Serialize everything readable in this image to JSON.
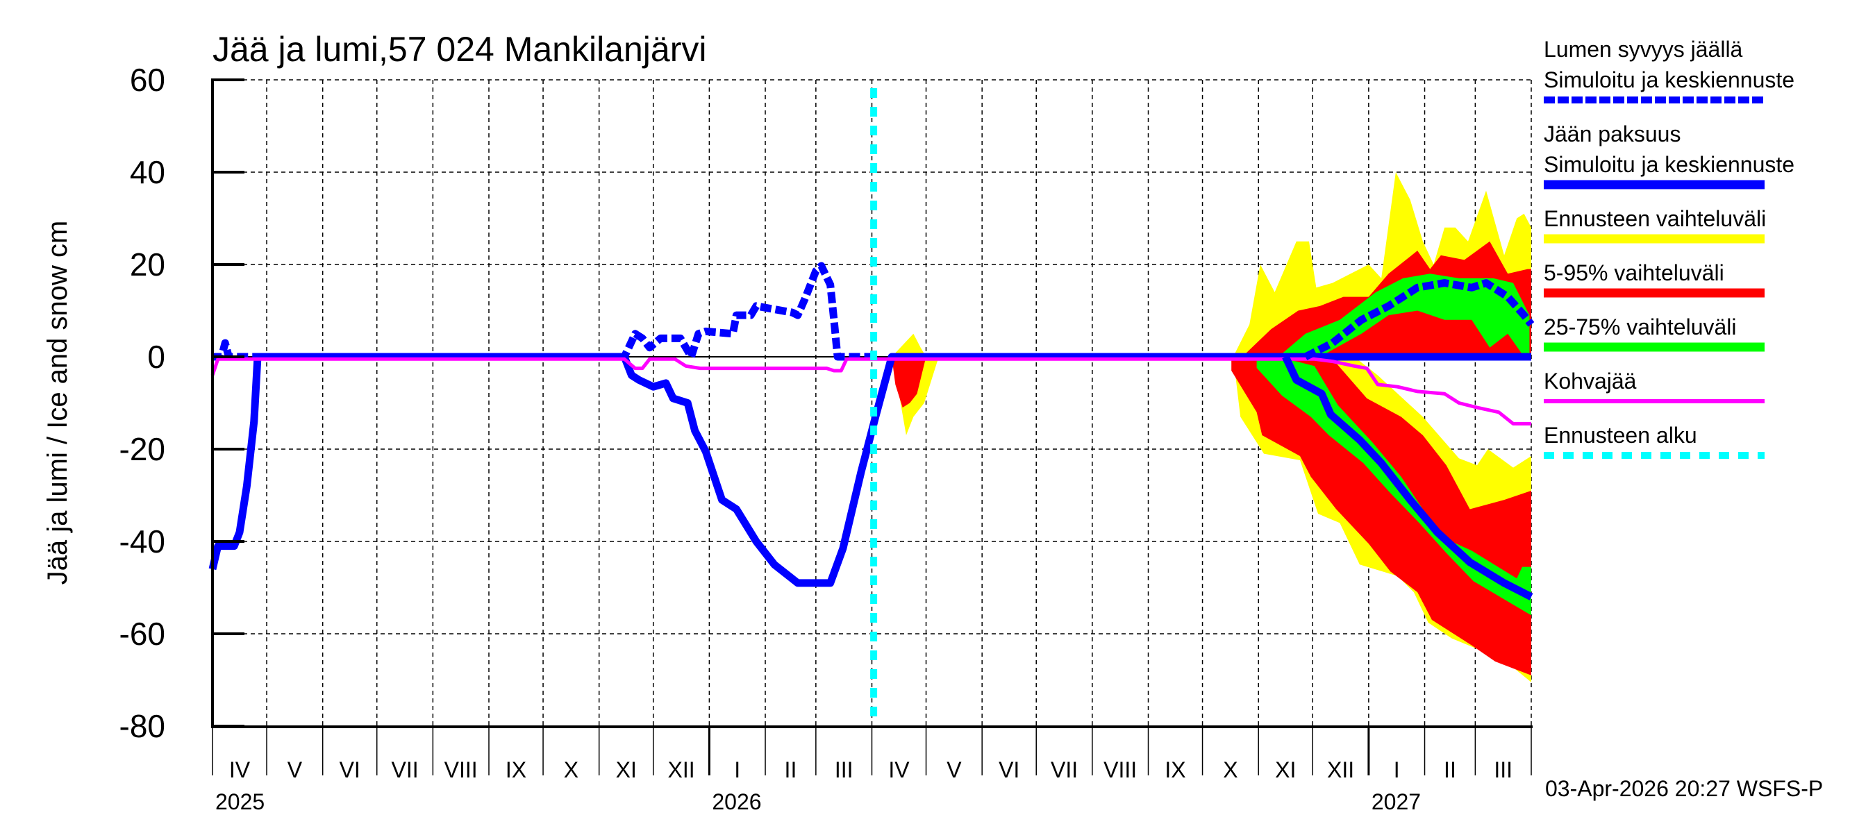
{
  "title": "Jää ja lumi,57 024 Mankilanjärvi",
  "y_axis_label": "Jää ja lumi / Ice and snow    cm",
  "y_ticks": [
    "60",
    "40",
    "20",
    "0",
    "-20",
    "-40",
    "-60",
    "-80"
  ],
  "months": [
    "IV",
    "V",
    "VI",
    "VII",
    "VIII",
    "IX",
    "X",
    "XI",
    "XII",
    "I",
    "II",
    "III",
    "IV",
    "V",
    "VI",
    "VII",
    "VIII",
    "IX",
    "X",
    "XI",
    "XII",
    "I",
    "II",
    "III"
  ],
  "years": [
    {
      "label": "2025",
      "month_index": 0
    },
    {
      "label": "2026",
      "month_index": 9
    },
    {
      "label": "2027",
      "month_index": 21
    }
  ],
  "footer": "03-Apr-2026 20:27 WSFS-P",
  "legend": [
    {
      "line1": "Lumen syvyys jäällä",
      "line2": "Simuloitu ja keskiennuste",
      "color": "#0000ff",
      "style": "dashed"
    },
    {
      "line1": "Jään paksuus",
      "line2": "Simuloitu ja keskiennuste",
      "color": "#0000ff",
      "style": "solid"
    },
    {
      "line1": "Ennusteen vaihteluväli",
      "color": "#ffff00",
      "style": "solid"
    },
    {
      "line1": "5-95% vaihteluväli",
      "color": "#ff0000",
      "style": "solid"
    },
    {
      "line1": "25-75% vaihteluväli",
      "color": "#00ff00",
      "style": "solid"
    },
    {
      "line1": "Kohvajää",
      "color": "#ff00ff",
      "style": "thin"
    },
    {
      "line1": "Ennusteen alku",
      "color": "#00ffff",
      "style": "dotted"
    }
  ],
  "chart_data": {
    "type": "line",
    "title": "Jää ja lumi,57 024 Mankilanjärvi",
    "xlabel": "",
    "ylabel": "Jää ja lumi / Ice and snow cm",
    "x_unit": "days since 2025-04-01",
    "xlim": [
      0,
      730
    ],
    "ylim": [
      -80,
      60
    ],
    "grid": true,
    "legend_position": "right",
    "forecast_start_day": 366,
    "series": [
      {
        "name": "Jään paksuus (simuloitu)",
        "color": "#0000ff",
        "style": "solid",
        "points": [
          [
            0,
            -46
          ],
          [
            3,
            -41
          ],
          [
            8,
            -41
          ],
          [
            12,
            -41
          ],
          [
            15,
            -38
          ],
          [
            19,
            -28
          ],
          [
            23,
            -14
          ],
          [
            25,
            0
          ],
          [
            228,
            0
          ],
          [
            232,
            -4
          ],
          [
            236,
            -5
          ],
          [
            244,
            -6.5
          ],
          [
            251,
            -5.7
          ],
          [
            255,
            -9
          ],
          [
            263,
            -10
          ],
          [
            267,
            -16
          ],
          [
            273,
            -20.5
          ],
          [
            282,
            -31
          ],
          [
            290,
            -33
          ],
          [
            301,
            -40
          ],
          [
            311,
            -45
          ],
          [
            324,
            -49
          ],
          [
            342,
            -49
          ],
          [
            349,
            -41.5
          ],
          [
            359,
            -25
          ],
          [
            367,
            -13
          ],
          [
            376,
            0
          ],
          [
            730,
            0
          ]
        ]
      },
      {
        "name": "Lumen syvyys jäällä (simuloitu)",
        "color": "#0000ff",
        "style": "dashed",
        "points": [
          [
            0,
            0
          ],
          [
            5,
            0
          ],
          [
            7,
            3
          ],
          [
            9,
            0
          ],
          [
            228,
            0
          ],
          [
            234,
            5
          ],
          [
            238,
            4
          ],
          [
            242,
            2
          ],
          [
            248,
            4
          ],
          [
            259,
            4
          ],
          [
            265,
            0
          ],
          [
            269,
            5
          ],
          [
            273,
            5.5
          ],
          [
            288,
            5
          ],
          [
            290,
            9
          ],
          [
            298,
            9
          ],
          [
            301,
            11
          ],
          [
            321,
            9.6
          ],
          [
            324,
            9
          ],
          [
            328,
            12.6
          ],
          [
            334,
            18.6
          ],
          [
            337,
            19.7
          ],
          [
            342,
            15.6
          ],
          [
            344,
            8
          ],
          [
            346,
            0
          ],
          [
            366,
            0
          ]
        ]
      },
      {
        "name": "Kohvajää",
        "color": "#ff00ff",
        "style": "thin",
        "points": [
          [
            0,
            -4
          ],
          [
            3,
            -0.5
          ],
          [
            228,
            -0.5
          ],
          [
            234,
            -2.5
          ],
          [
            238,
            -2.5
          ],
          [
            242,
            -0.5
          ],
          [
            256,
            -0.5
          ],
          [
            262,
            -2
          ],
          [
            270,
            -2.5
          ],
          [
            340,
            -2.5
          ],
          [
            344,
            -3
          ],
          [
            348,
            -3
          ],
          [
            351,
            -0.5
          ],
          [
            610,
            -0.5
          ],
          [
            620,
            -1
          ],
          [
            632,
            -2
          ],
          [
            639,
            -2.5
          ],
          [
            645,
            -6
          ],
          [
            656,
            -6.5
          ],
          [
            667,
            -7.5
          ],
          [
            682,
            -8
          ],
          [
            690,
            -10
          ],
          [
            700,
            -11
          ],
          [
            712,
            -12
          ],
          [
            720,
            -14.5
          ],
          [
            730,
            -14.5
          ]
        ]
      },
      {
        "name": "Jään paksuus (keskiennuste)",
        "color": "#0000ff",
        "style": "solid",
        "points": [
          [
            594,
            0
          ],
          [
            600,
            -5
          ],
          [
            614,
            -8
          ],
          [
            619,
            -12.5
          ],
          [
            635,
            -18
          ],
          [
            647,
            -23
          ],
          [
            663,
            -31
          ],
          [
            678,
            -38
          ],
          [
            696,
            -44.5
          ],
          [
            715,
            -49
          ],
          [
            730,
            -52
          ]
        ]
      },
      {
        "name": "Lumen syvyys (keskiennuste)",
        "color": "#0000ff",
        "style": "dashed",
        "points": [
          [
            605,
            0
          ],
          [
            620,
            3
          ],
          [
            636,
            8
          ],
          [
            651,
            11
          ],
          [
            667,
            15
          ],
          [
            682,
            16
          ],
          [
            697,
            15
          ],
          [
            705,
            16
          ],
          [
            717,
            13
          ],
          [
            726,
            9
          ],
          [
            730,
            7
          ]
        ]
      }
    ],
    "bands": [
      {
        "name": "Ennusteen vaihteluväli (lumi)",
        "color": "#ffff00",
        "top": [
          [
            565,
            0
          ],
          [
            574,
            7
          ],
          [
            580,
            20
          ],
          [
            588,
            14
          ],
          [
            600,
            25
          ],
          [
            607,
            25
          ],
          [
            611,
            15
          ],
          [
            620,
            16
          ],
          [
            630,
            18
          ],
          [
            640,
            20
          ],
          [
            647,
            17
          ],
          [
            655,
            40
          ],
          [
            663,
            34
          ],
          [
            670,
            25
          ],
          [
            676,
            20
          ],
          [
            682,
            28
          ],
          [
            688,
            28
          ],
          [
            695,
            25
          ],
          [
            705,
            36
          ],
          [
            715,
            22
          ],
          [
            722,
            30
          ],
          [
            726,
            31
          ],
          [
            730,
            28
          ]
        ],
        "bottom": [
          [
            730,
            0
          ],
          [
            565,
            0
          ]
        ]
      },
      {
        "name": "Ennusteen vaihteluväli (jää)",
        "color": "#ffff00",
        "top": [
          [
            565,
            0
          ],
          [
            632,
            0
          ],
          [
            645,
            -4
          ],
          [
            670,
            -13
          ],
          [
            690,
            -22
          ],
          [
            700,
            -23.5
          ],
          [
            706,
            -20
          ],
          [
            720,
            -24
          ],
          [
            730,
            -21.5
          ]
        ],
        "bottom": [
          [
            730,
            -70.5
          ],
          [
            719,
            -67
          ],
          [
            702,
            -63.6
          ],
          [
            686,
            -61
          ],
          [
            673,
            -57.6
          ],
          [
            665,
            -51
          ],
          [
            656,
            -47.5
          ],
          [
            635,
            -45
          ],
          [
            624,
            -36
          ],
          [
            612,
            -34
          ],
          [
            602,
            -22.4
          ],
          [
            582,
            -21
          ],
          [
            569,
            -13
          ],
          [
            565,
            0
          ]
        ]
      },
      {
        "name": "Ennusteen vaihteluväli (kevät 2026)",
        "color": "#ffff00",
        "top": [
          [
            376,
            0
          ],
          [
            388,
            5
          ],
          [
            392,
            2
          ],
          [
            395,
            0
          ],
          [
            402,
            0
          ]
        ],
        "bottom": [
          [
            402,
            0
          ],
          [
            394,
            -10
          ],
          [
            388,
            -13
          ],
          [
            384,
            -17
          ],
          [
            380,
            -8
          ],
          [
            376,
            0
          ]
        ]
      },
      {
        "name": "5-95% (lumi)",
        "color": "#ff0000",
        "top": [
          [
            570,
            0
          ],
          [
            586,
            6
          ],
          [
            601,
            10
          ],
          [
            613,
            11
          ],
          [
            626,
            13
          ],
          [
            640,
            13
          ],
          [
            651,
            18
          ],
          [
            667,
            23
          ],
          [
            674,
            19
          ],
          [
            680,
            22
          ],
          [
            693,
            21
          ],
          [
            707,
            25
          ],
          [
            717,
            18
          ],
          [
            728,
            19
          ],
          [
            730,
            19
          ]
        ],
        "bottom": [
          [
            730,
            0
          ],
          [
            570,
            0
          ]
        ]
      },
      {
        "name": "5-95% (jää)",
        "color": "#ff0000",
        "top": [
          [
            564,
            0
          ],
          [
            619,
            0
          ],
          [
            639,
            -9
          ],
          [
            658,
            -13
          ],
          [
            670,
            -17
          ],
          [
            683,
            -23.5
          ],
          [
            696,
            -33
          ],
          [
            715,
            -31
          ],
          [
            730,
            -29
          ]
        ],
        "bottom": [
          [
            730,
            -69
          ],
          [
            710,
            -66
          ],
          [
            697,
            -62.5
          ],
          [
            675,
            -57
          ],
          [
            667,
            -51
          ],
          [
            652,
            -46.5
          ],
          [
            640,
            -40.5
          ],
          [
            622,
            -33
          ],
          [
            608,
            -26
          ],
          [
            602,
            -21.5
          ],
          [
            581,
            -17
          ],
          [
            578,
            -12
          ],
          [
            564,
            -3
          ]
        ]
      },
      {
        "name": "5-95% (kevät 2026)",
        "color": "#ff0000",
        "top": [
          [
            376,
            0
          ],
          [
            395,
            0
          ]
        ],
        "bottom": [
          [
            395,
            0
          ],
          [
            390,
            -8
          ],
          [
            386,
            -10
          ],
          [
            382,
            -11
          ],
          [
            378,
            -6
          ],
          [
            376,
            0
          ]
        ]
      },
      {
        "name": "25-75% (lumi)",
        "color": "#00ff00",
        "top": [
          [
            590,
            0
          ],
          [
            605,
            5
          ],
          [
            624,
            8
          ],
          [
            644,
            14
          ],
          [
            659,
            17
          ],
          [
            674,
            18
          ],
          [
            690,
            17
          ],
          [
            709,
            17
          ],
          [
            720,
            16
          ],
          [
            729,
            9
          ]
        ],
        "bottom": [
          [
            729,
            0
          ],
          [
            726,
            0
          ],
          [
            717,
            5
          ],
          [
            707,
            2
          ],
          [
            697,
            8
          ],
          [
            682,
            8
          ],
          [
            667,
            10
          ],
          [
            651,
            9
          ],
          [
            636,
            5
          ],
          [
            613,
            0
          ]
        ]
      },
      {
        "name": "25-75% (jää)",
        "color": "#00ff00",
        "top": [
          [
            578,
            0
          ],
          [
            600,
            -1
          ],
          [
            610,
            -2
          ],
          [
            623,
            -10.5
          ],
          [
            642,
            -18.5
          ],
          [
            658,
            -26
          ],
          [
            670,
            -33
          ],
          [
            683,
            -39.5
          ],
          [
            697,
            -42
          ],
          [
            722,
            -48
          ],
          [
            725,
            -45.5
          ],
          [
            730,
            -45.5
          ]
        ],
        "bottom": [
          [
            730,
            -56
          ],
          [
            698,
            -48.6
          ],
          [
            683,
            -42.5
          ],
          [
            668,
            -36
          ],
          [
            652,
            -29.5
          ],
          [
            637,
            -23
          ],
          [
            618,
            -17
          ],
          [
            608,
            -13
          ],
          [
            592,
            -8.4
          ],
          [
            578,
            -2.4
          ]
        ]
      }
    ]
  }
}
